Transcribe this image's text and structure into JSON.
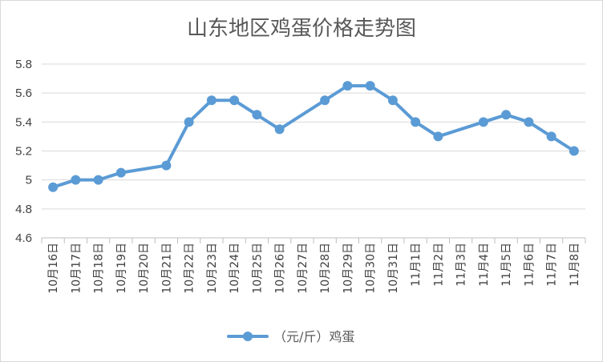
{
  "chart_data": {
    "type": "line",
    "title": "山东地区鸡蛋价格走势图",
    "categories": [
      "10月16日",
      "10月17日",
      "10月18日",
      "10月19日",
      "10月20日",
      "10月21日",
      "10月22日",
      "10月23日",
      "10月24日",
      "10月25日",
      "10月26日",
      "10月27日",
      "10月28日",
      "10月29日",
      "10月30日",
      "10月31日",
      "11月1日",
      "11月2日",
      "11月3日",
      "11月4日",
      "11月5日",
      "11月6日",
      "11月7日",
      "11月8日"
    ],
    "series": [
      {
        "name": "（元/斤）鸡蛋",
        "color": "#5b9bd5",
        "values": [
          4.95,
          5.0,
          5.0,
          5.05,
          null,
          5.1,
          5.4,
          5.55,
          5.55,
          5.45,
          5.35,
          null,
          5.55,
          5.65,
          5.65,
          5.55,
          5.4,
          5.3,
          null,
          5.4,
          5.45,
          5.4,
          5.3,
          5.2
        ]
      }
    ],
    "yticks": [
      "5.8",
      "5.6",
      "5.4",
      "5.2",
      "5",
      "4.8",
      "4.6"
    ],
    "ylim": [
      4.6,
      5.8
    ],
    "grid": true,
    "legend_position": "bottom"
  }
}
